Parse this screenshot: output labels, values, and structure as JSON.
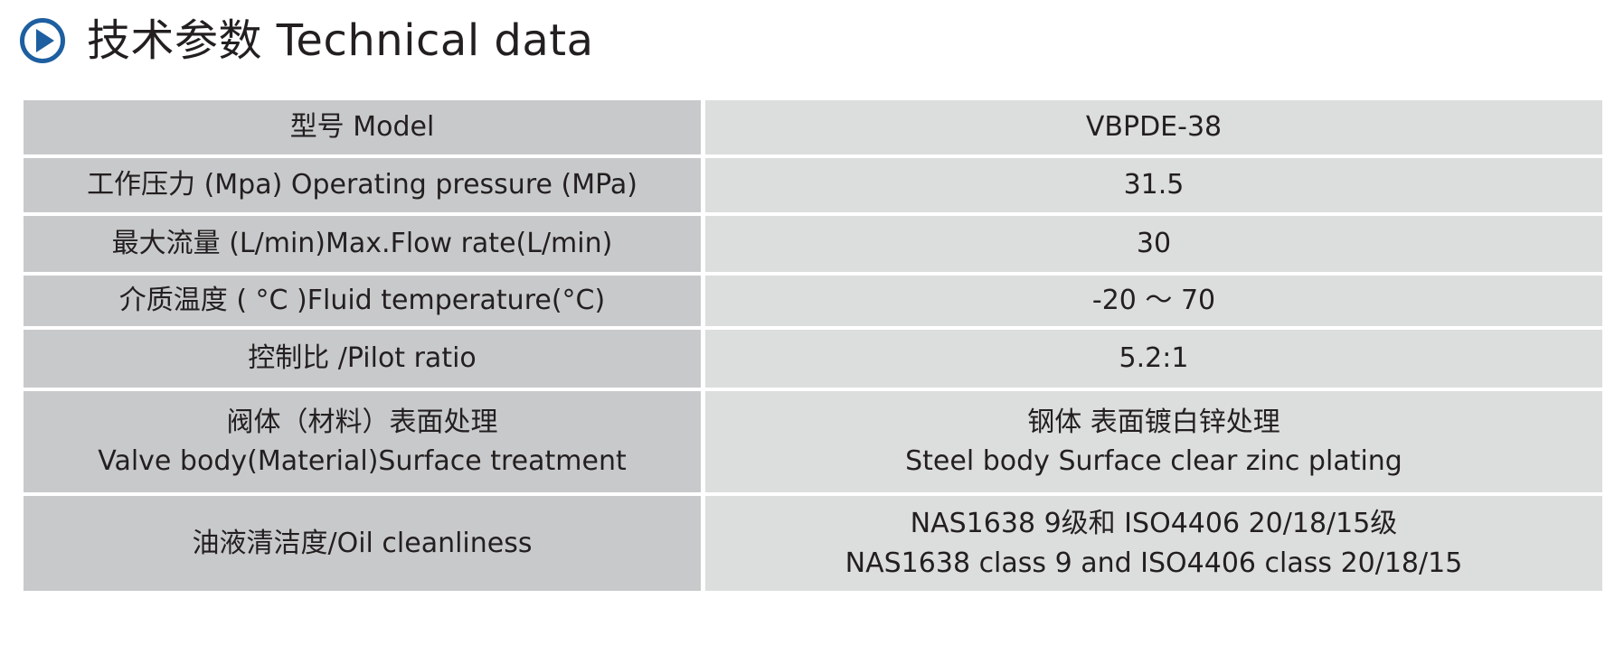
{
  "header": {
    "icon": "play-circle-icon",
    "accent_color": "#1d5fa0",
    "title": "技术参数 Technical data"
  },
  "table": {
    "label_bg": "#c8c9ca",
    "value_bg": "#dcdddd",
    "rows": [
      {
        "label": [
          "型号 Model"
        ],
        "value": [
          "VBPDE-38"
        ]
      },
      {
        "label": [
          "工作压力 (Mpa) Operating pressure (MPa)"
        ],
        "value": [
          "31.5"
        ]
      },
      {
        "label": [
          "最大流量 (L/min)Max.Flow rate(L/min)"
        ],
        "value": [
          "30"
        ]
      },
      {
        "label": [
          "介质温度 ( °C )Fluid temperature(°C)"
        ],
        "value": [
          "-20 ～ 70"
        ]
      },
      {
        "label": [
          "控制比 /Pilot ratio"
        ],
        "value": [
          "5.2:1"
        ]
      },
      {
        "label": [
          "阀体（材料）表面处理",
          "Valve body(Material)Surface treatment"
        ],
        "value": [
          "钢体  表面镀白锌处理",
          "Steel body Surface clear zinc plating"
        ]
      },
      {
        "label": [
          "油液清洁度/Oil cleanliness"
        ],
        "value": [
          "NAS1638 9级和 ISO4406 20/18/15级",
          "NAS1638 class 9 and ISO4406 class 20/18/15"
        ]
      }
    ]
  }
}
